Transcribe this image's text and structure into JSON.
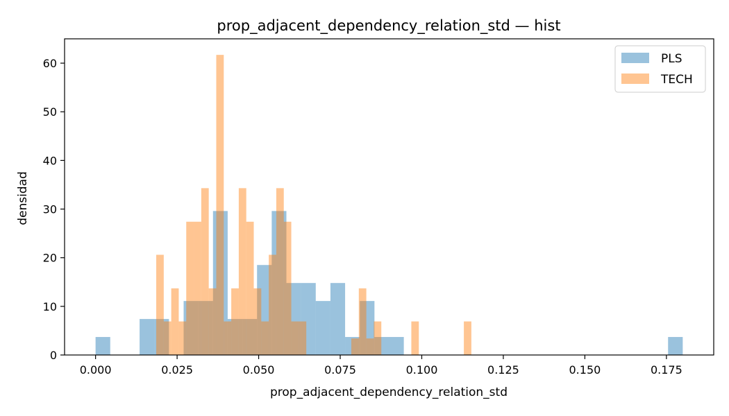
{
  "chart_data": {
    "type": "histogram",
    "title": "prop_adjacent_dependency_relation_std — hist",
    "xlabel": "prop_adjacent_dependency_relation_std",
    "ylabel": "densidad",
    "xlim": [
      -0.0095,
      0.1895
    ],
    "ylim": [
      0,
      65
    ],
    "xticks": [
      0.0,
      0.025,
      0.05,
      0.075,
      0.1,
      0.125,
      0.15,
      0.175
    ],
    "xtick_labels": [
      "0.000",
      "0.025",
      "0.050",
      "0.075",
      "0.100",
      "0.125",
      "0.150",
      "0.175"
    ],
    "yticks": [
      0,
      10,
      20,
      30,
      40,
      50,
      60
    ],
    "ytick_labels": [
      "0",
      "10",
      "20",
      "30",
      "40",
      "50",
      "60"
    ],
    "legend_position": "top-right",
    "series": [
      {
        "name": "PLS",
        "color": "#1f77b4",
        "opacity": 0.45,
        "bins": [
          {
            "x0": 0.0,
            "x1": 0.0045,
            "y": 3.7
          },
          {
            "x0": 0.0135,
            "x1": 0.018,
            "y": 7.4
          },
          {
            "x0": 0.018,
            "x1": 0.0225,
            "y": 7.4
          },
          {
            "x0": 0.027,
            "x1": 0.0315,
            "y": 11.1
          },
          {
            "x0": 0.0315,
            "x1": 0.036,
            "y": 11.1
          },
          {
            "x0": 0.036,
            "x1": 0.0405,
            "y": 29.6
          },
          {
            "x0": 0.0405,
            "x1": 0.045,
            "y": 7.4
          },
          {
            "x0": 0.045,
            "x1": 0.0495,
            "y": 7.4
          },
          {
            "x0": 0.0495,
            "x1": 0.054,
            "y": 18.5
          },
          {
            "x0": 0.054,
            "x1": 0.0585,
            "y": 29.6
          },
          {
            "x0": 0.0585,
            "x1": 0.063,
            "y": 14.8
          },
          {
            "x0": 0.063,
            "x1": 0.0675,
            "y": 14.8
          },
          {
            "x0": 0.0675,
            "x1": 0.072,
            "y": 11.1
          },
          {
            "x0": 0.072,
            "x1": 0.0765,
            "y": 14.8
          },
          {
            "x0": 0.0765,
            "x1": 0.081,
            "y": 3.7
          },
          {
            "x0": 0.081,
            "x1": 0.0855,
            "y": 11.1
          },
          {
            "x0": 0.0855,
            "x1": 0.09,
            "y": 3.7
          },
          {
            "x0": 0.09,
            "x1": 0.0945,
            "y": 3.7
          },
          {
            "x0": 0.1755,
            "x1": 0.18,
            "y": 3.7
          }
        ]
      },
      {
        "name": "TECH",
        "color": "#ff7f0e",
        "opacity": 0.45,
        "bins": [
          {
            "x0": 0.0186,
            "x1": 0.0209,
            "y": 20.6
          },
          {
            "x0": 0.0209,
            "x1": 0.0232,
            "y": 6.9
          },
          {
            "x0": 0.0232,
            "x1": 0.0255,
            "y": 13.7
          },
          {
            "x0": 0.0255,
            "x1": 0.0278,
            "y": 6.9
          },
          {
            "x0": 0.0278,
            "x1": 0.0301,
            "y": 27.4
          },
          {
            "x0": 0.0301,
            "x1": 0.0324,
            "y": 27.4
          },
          {
            "x0": 0.0324,
            "x1": 0.0347,
            "y": 34.3
          },
          {
            "x0": 0.0347,
            "x1": 0.037,
            "y": 13.7
          },
          {
            "x0": 0.037,
            "x1": 0.0393,
            "y": 61.7
          },
          {
            "x0": 0.0393,
            "x1": 0.0416,
            "y": 6.9
          },
          {
            "x0": 0.0416,
            "x1": 0.0439,
            "y": 13.7
          },
          {
            "x0": 0.0439,
            "x1": 0.0462,
            "y": 34.3
          },
          {
            "x0": 0.0462,
            "x1": 0.0485,
            "y": 27.4
          },
          {
            "x0": 0.0485,
            "x1": 0.0508,
            "y": 13.7
          },
          {
            "x0": 0.0508,
            "x1": 0.0531,
            "y": 6.9
          },
          {
            "x0": 0.0531,
            "x1": 0.0554,
            "y": 20.6
          },
          {
            "x0": 0.0554,
            "x1": 0.0577,
            "y": 34.3
          },
          {
            "x0": 0.0577,
            "x1": 0.06,
            "y": 27.4
          },
          {
            "x0": 0.06,
            "x1": 0.0623,
            "y": 6.9
          },
          {
            "x0": 0.0623,
            "x1": 0.0646,
            "y": 6.9
          },
          {
            "x0": 0.0784,
            "x1": 0.0807,
            "y": 3.4
          },
          {
            "x0": 0.0807,
            "x1": 0.083,
            "y": 13.7
          },
          {
            "x0": 0.083,
            "x1": 0.0853,
            "y": 3.4
          },
          {
            "x0": 0.0853,
            "x1": 0.0876,
            "y": 6.9
          },
          {
            "x0": 0.0968,
            "x1": 0.0991,
            "y": 6.9
          },
          {
            "x0": 0.1129,
            "x1": 0.1152,
            "y": 6.9
          }
        ]
      }
    ]
  }
}
